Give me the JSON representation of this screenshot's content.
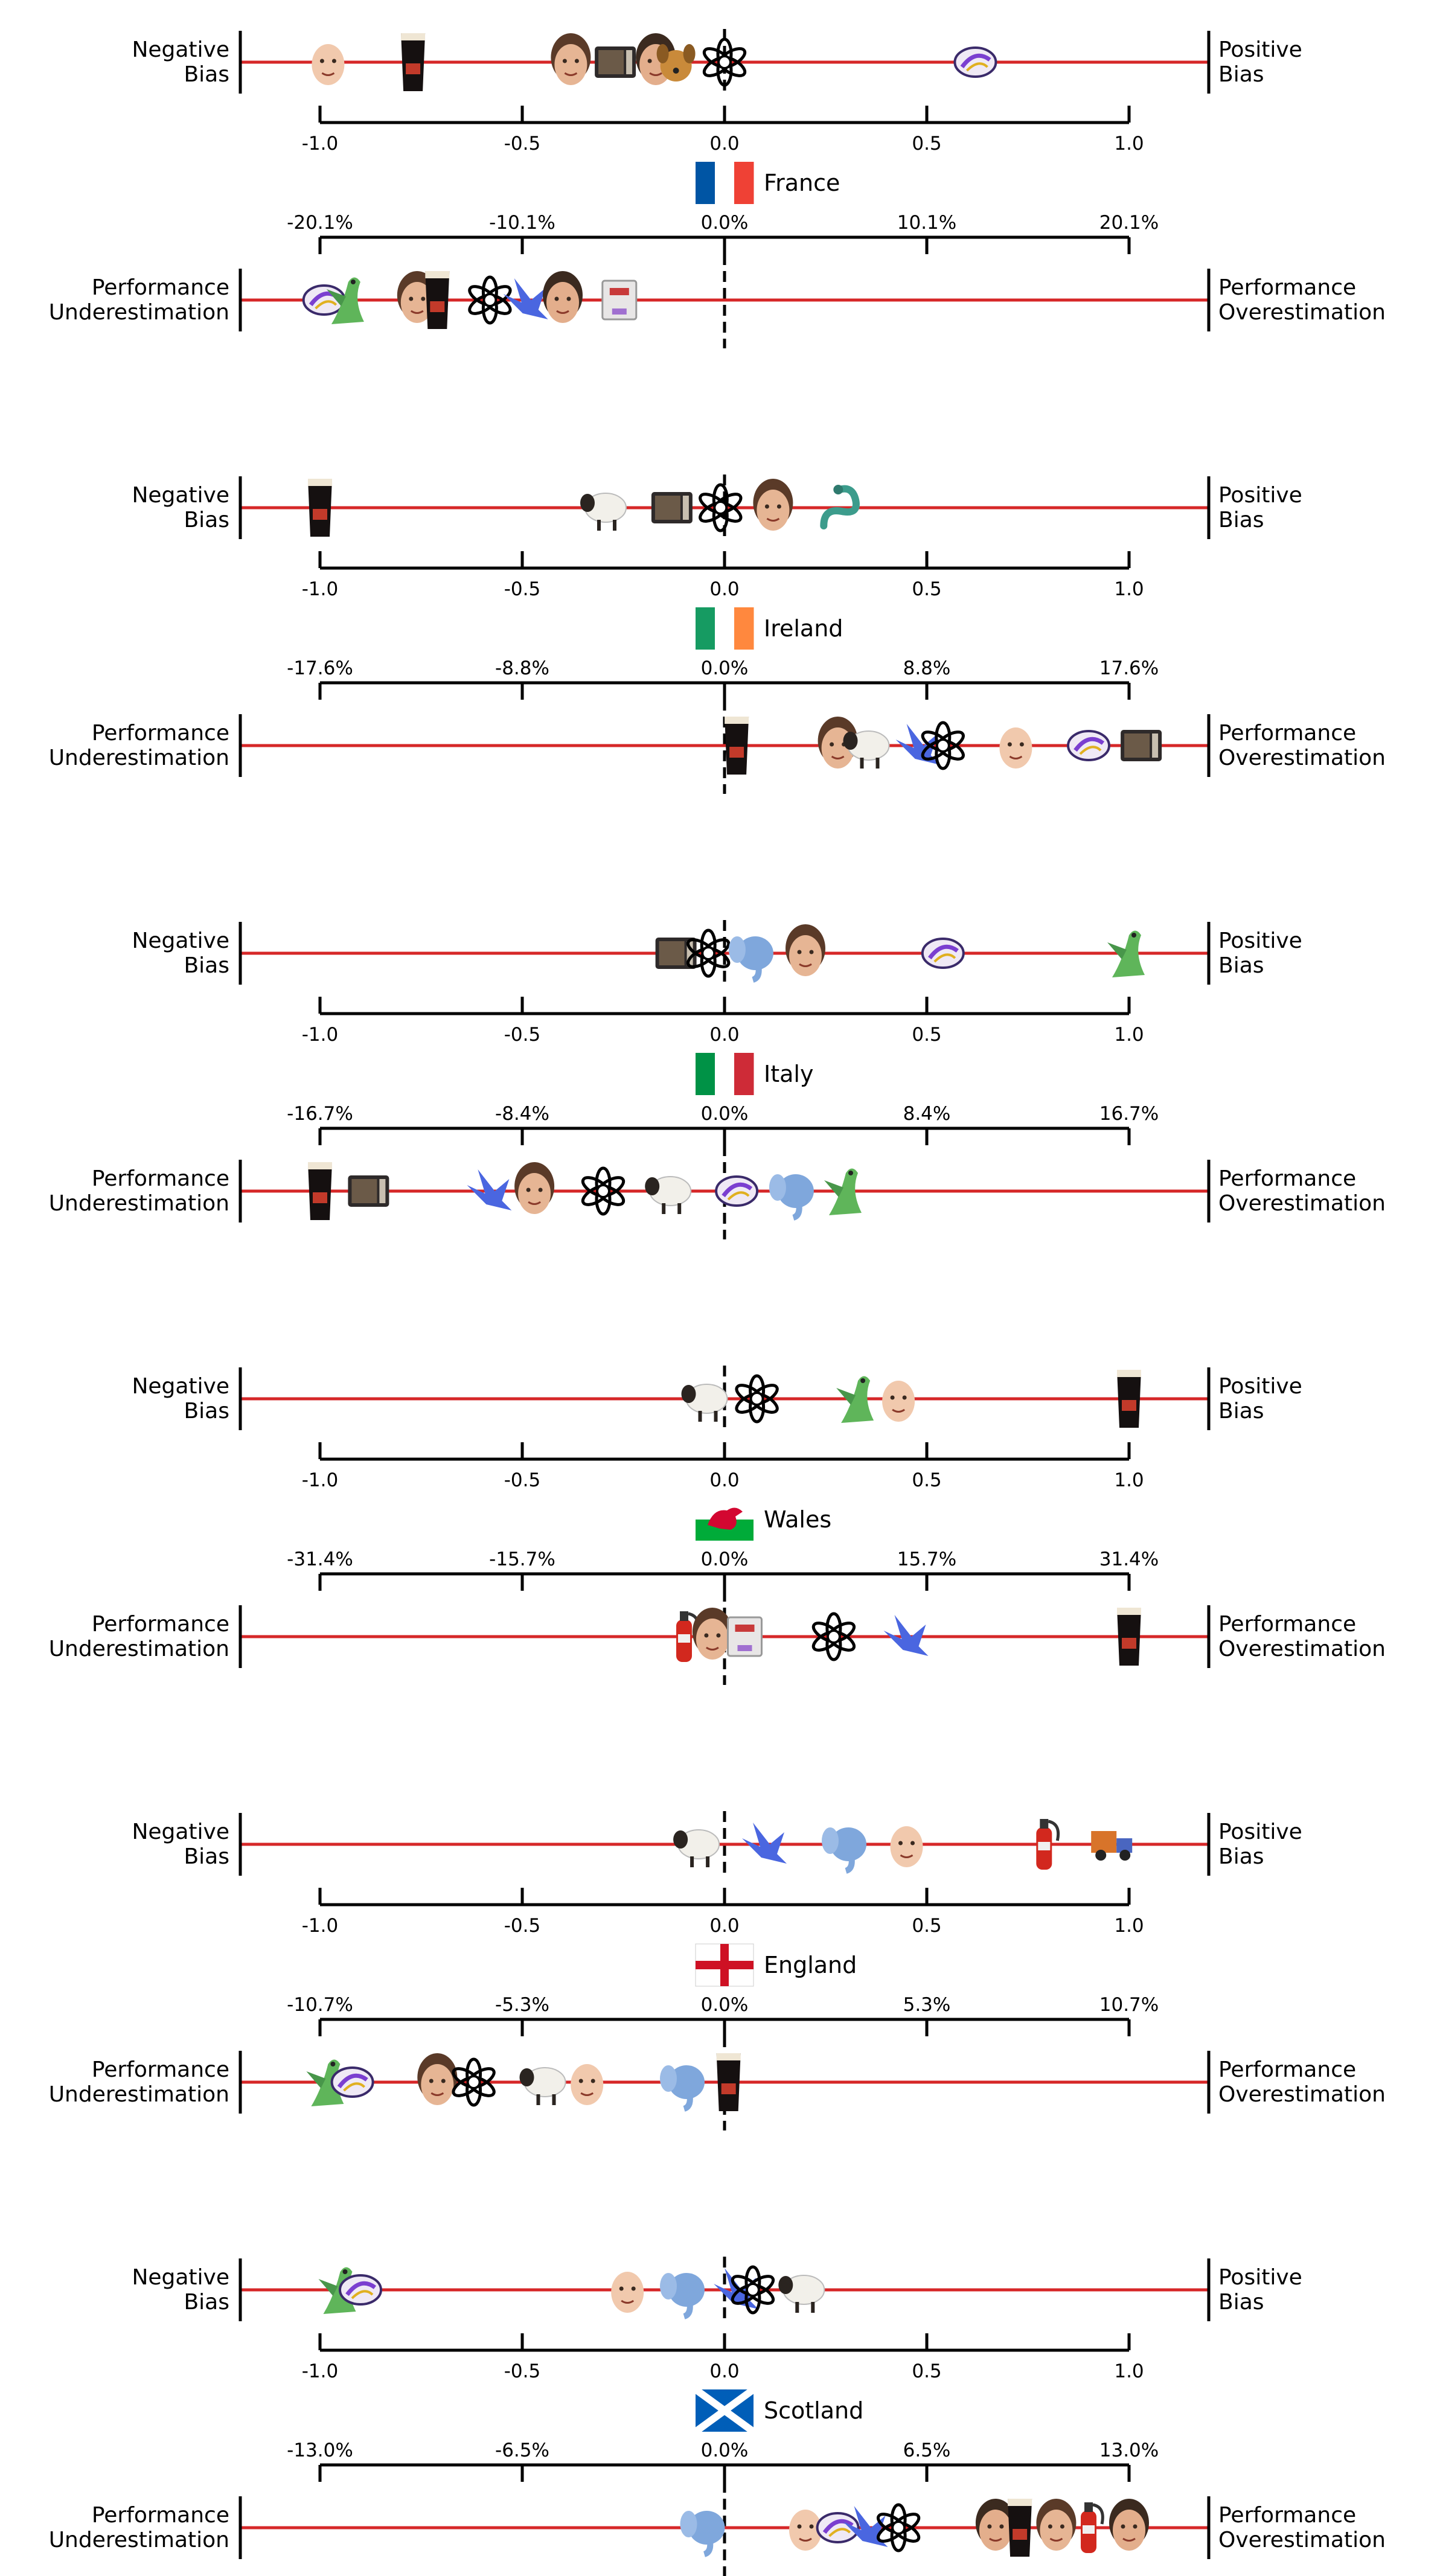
{
  "labels": {
    "negative": [
      "Negative",
      "Bias"
    ],
    "positive": [
      "Positive",
      "Bias"
    ],
    "under": [
      "Performance",
      "Underestimation"
    ],
    "over": [
      "Performance",
      "Overestimation"
    ]
  },
  "chart_data": {
    "type": "scatter",
    "bias_axis": {
      "range": [
        -1.0,
        1.0
      ],
      "ticks": [
        "-1.0",
        "-0.5",
        "0.0",
        "0.5",
        "1.0"
      ]
    },
    "panels": [
      {
        "country": "France",
        "flag": [
          "#0055a4",
          "#ffffff",
          "#ef4135"
        ],
        "perf_ticks": [
          "-20.1%",
          "-10.1%",
          "0.0%",
          "10.1%",
          "20.1%"
        ],
        "bias_markers": [
          {
            "icon": "baby-face-icon",
            "x": -0.98
          },
          {
            "icon": "pint-glass-icon",
            "x": -0.77
          },
          {
            "icon": "woman-face-icon",
            "x": -0.38
          },
          {
            "icon": "microwave-icon",
            "x": -0.27
          },
          {
            "icon": "man-face-icon",
            "x": -0.17
          },
          {
            "icon": "dog-icon",
            "x": -0.12
          },
          {
            "icon": "openai-logo-icon",
            "x": 0.0
          },
          {
            "icon": "swirl-logo-icon",
            "x": 0.62
          }
        ],
        "perf_markers": [
          {
            "icon": "swirl-logo-icon",
            "x": -0.99
          },
          {
            "icon": "dragon-icon",
            "x": -0.93
          },
          {
            "icon": "woman-face-icon",
            "x": -0.76
          },
          {
            "icon": "pint-glass-icon",
            "x": -0.71
          },
          {
            "icon": "openai-logo-icon",
            "x": -0.58
          },
          {
            "icon": "blue-bird-icon",
            "x": -0.49
          },
          {
            "icon": "man-face-icon",
            "x": -0.4
          },
          {
            "icon": "printer-icon",
            "x": -0.26
          }
        ]
      },
      {
        "country": "Ireland",
        "flag": [
          "#169b62",
          "#ffffff",
          "#ff883e"
        ],
        "perf_ticks": [
          "-17.6%",
          "-8.8%",
          "0.0%",
          "8.8%",
          "17.6%"
        ],
        "bias_markers": [
          {
            "icon": "pint-glass-icon",
            "x": -1.0
          },
          {
            "icon": "sheep-icon",
            "x": -0.3
          },
          {
            "icon": "microwave-icon",
            "x": -0.13
          },
          {
            "icon": "openai-logo-icon",
            "x": -0.01
          },
          {
            "icon": "woman-face-icon",
            "x": 0.12
          },
          {
            "icon": "snake-icon",
            "x": 0.29
          }
        ],
        "perf_markers": [
          {
            "icon": "pint-glass-icon",
            "x": 0.03
          },
          {
            "icon": "woman-face-icon",
            "x": 0.28
          },
          {
            "icon": "sheep-icon",
            "x": 0.35
          },
          {
            "icon": "blue-bird-icon",
            "x": 0.48
          },
          {
            "icon": "openai-logo-icon",
            "x": 0.54
          },
          {
            "icon": "baby-face-icon",
            "x": 0.72
          },
          {
            "icon": "swirl-logo-icon",
            "x": 0.9
          },
          {
            "icon": "microwave-icon",
            "x": 1.03
          }
        ]
      },
      {
        "country": "Italy",
        "flag": [
          "#009246",
          "#ffffff",
          "#ce2b37"
        ],
        "perf_ticks": [
          "-16.7%",
          "-8.4%",
          "0.0%",
          "8.4%",
          "16.7%"
        ],
        "bias_markers": [
          {
            "icon": "microwave-icon",
            "x": -0.12
          },
          {
            "icon": "openai-logo-icon",
            "x": -0.04
          },
          {
            "icon": "elephant-icon",
            "x": 0.07
          },
          {
            "icon": "woman-face-icon",
            "x": 0.2
          },
          {
            "icon": "swirl-logo-icon",
            "x": 0.54
          },
          {
            "icon": "dragon-icon",
            "x": 1.0
          }
        ],
        "perf_markers": [
          {
            "icon": "pint-glass-icon",
            "x": -1.0
          },
          {
            "icon": "microwave-icon",
            "x": -0.88
          },
          {
            "icon": "blue-bird-icon",
            "x": -0.58
          },
          {
            "icon": "woman-face-icon",
            "x": -0.47
          },
          {
            "icon": "openai-logo-icon",
            "x": -0.3
          },
          {
            "icon": "sheep-icon",
            "x": -0.14
          },
          {
            "icon": "swirl-logo-icon",
            "x": 0.03
          },
          {
            "icon": "elephant-icon",
            "x": 0.17
          },
          {
            "icon": "dragon-icon",
            "x": 0.3
          }
        ]
      },
      {
        "country": "Wales",
        "flag": [
          "#ffffff",
          "#00ab39",
          "#d30731"
        ],
        "perf_ticks": [
          "-31.4%",
          "-15.7%",
          "0.0%",
          "15.7%",
          "31.4%"
        ],
        "bias_markers": [
          {
            "icon": "sheep-icon",
            "x": -0.05
          },
          {
            "icon": "openai-logo-icon",
            "x": 0.08
          },
          {
            "icon": "dragon-icon",
            "x": 0.33
          },
          {
            "icon": "baby-face-icon",
            "x": 0.43
          },
          {
            "icon": "pint-glass-icon",
            "x": 1.0
          }
        ],
        "perf_markers": [
          {
            "icon": "fire-extinguisher-icon",
            "x": -0.1
          },
          {
            "icon": "woman-face-icon",
            "x": -0.03
          },
          {
            "icon": "printer-icon",
            "x": 0.05
          },
          {
            "icon": "openai-logo-icon",
            "x": 0.27
          },
          {
            "icon": "blue-bird-icon",
            "x": 0.45
          },
          {
            "icon": "pint-glass-icon",
            "x": 1.0
          }
        ]
      },
      {
        "country": "England",
        "flag": [
          "#ffffff",
          "#ce1124"
        ],
        "perf_ticks": [
          "-10.7%",
          "-5.3%",
          "0.0%",
          "5.3%",
          "10.7%"
        ],
        "bias_markers": [
          {
            "icon": "sheep-icon",
            "x": -0.07
          },
          {
            "icon": "blue-bird-icon",
            "x": 0.1
          },
          {
            "icon": "elephant-icon",
            "x": 0.3
          },
          {
            "icon": "baby-face-icon",
            "x": 0.45
          },
          {
            "icon": "fire-extinguisher-icon",
            "x": 0.79
          },
          {
            "icon": "truck-icon",
            "x": 0.96
          }
        ],
        "perf_markers": [
          {
            "icon": "dragon-icon",
            "x": -0.98
          },
          {
            "icon": "swirl-logo-icon",
            "x": -0.92
          },
          {
            "icon": "woman-face-icon",
            "x": -0.71
          },
          {
            "icon": "openai-logo-icon",
            "x": -0.62
          },
          {
            "icon": "sheep-icon",
            "x": -0.45
          },
          {
            "icon": "baby-face-icon",
            "x": -0.34
          },
          {
            "icon": "elephant-icon",
            "x": -0.1
          },
          {
            "icon": "pint-glass-icon",
            "x": 0.01
          }
        ]
      },
      {
        "country": "Scotland",
        "flag": [
          "#005eb8",
          "#ffffff"
        ],
        "perf_ticks": [
          "-13.0%",
          "-6.5%",
          "0.0%",
          "6.5%",
          "13.0%"
        ],
        "bias_markers": [
          {
            "icon": "dragon-icon",
            "x": -0.95
          },
          {
            "icon": "swirl-logo-icon",
            "x": -0.9
          },
          {
            "icon": "baby-face-icon",
            "x": -0.24
          },
          {
            "icon": "elephant-icon",
            "x": -0.1
          },
          {
            "icon": "blue-bird-icon",
            "x": 0.03
          },
          {
            "icon": "openai-logo-icon",
            "x": 0.07
          },
          {
            "icon": "sheep-icon",
            "x": 0.19
          }
        ],
        "perf_markers": [
          {
            "icon": "elephant-icon",
            "x": -0.05
          },
          {
            "icon": "baby-face-icon",
            "x": 0.2
          },
          {
            "icon": "swirl-logo-icon",
            "x": 0.28
          },
          {
            "icon": "blue-bird-icon",
            "x": 0.35
          },
          {
            "icon": "openai-logo-icon",
            "x": 0.43
          },
          {
            "icon": "man-face-icon",
            "x": 0.67
          },
          {
            "icon": "pint-glass-icon",
            "x": 0.73
          },
          {
            "icon": "woman-face-icon",
            "x": 0.82
          },
          {
            "icon": "fire-extinguisher-icon",
            "x": 0.9
          },
          {
            "icon": "man-face-icon",
            "x": 1.0
          }
        ]
      }
    ]
  }
}
